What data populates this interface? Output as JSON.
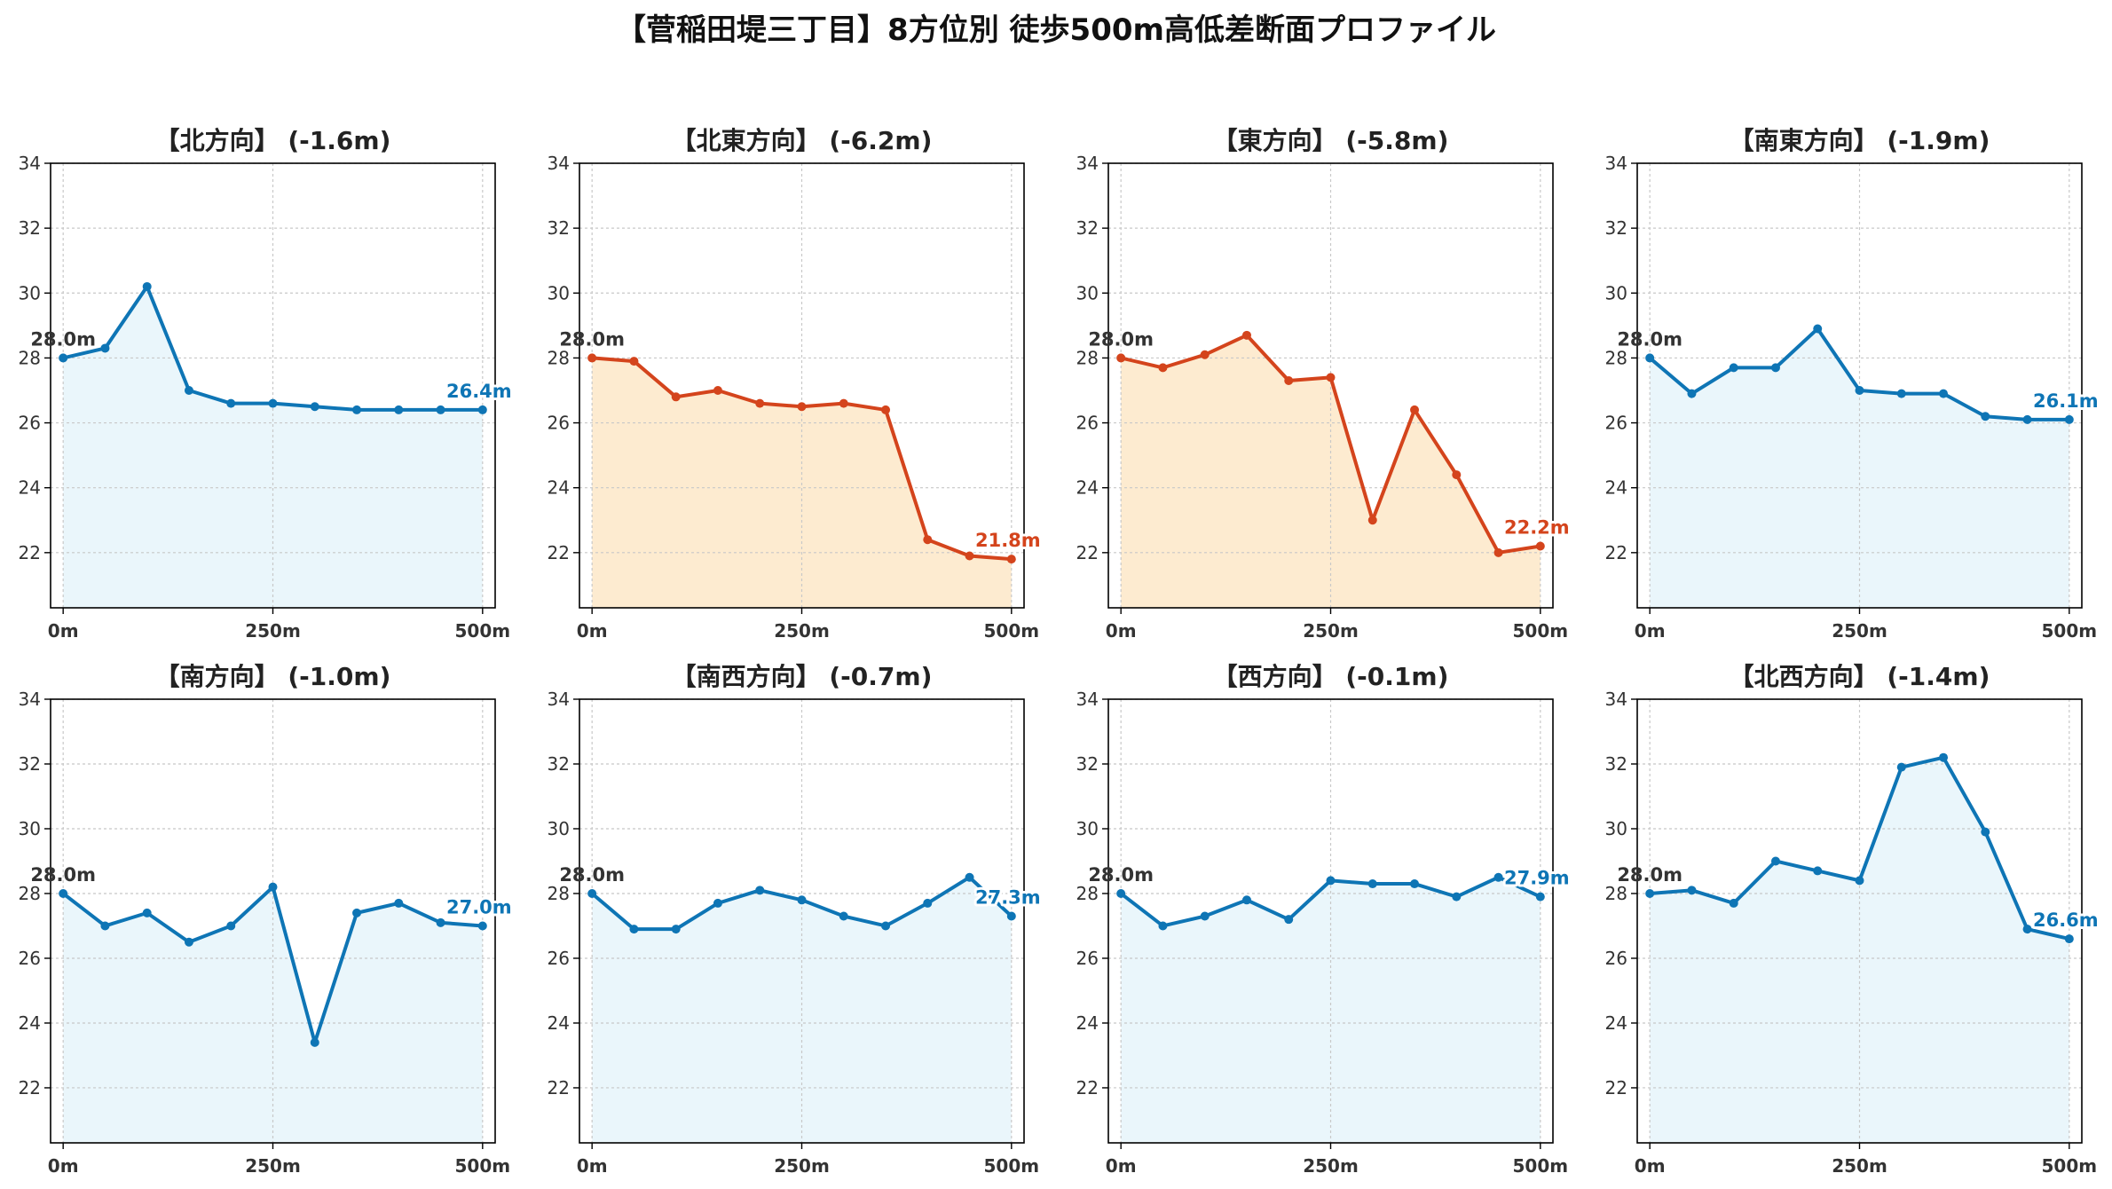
{
  "title": "【菅稲田堤三丁目】8方位別 徒歩500m高低差断面プロファイル",
  "colors": {
    "down": "#d4441c",
    "downFill": "#fdebd0",
    "normal": "#0e75b5",
    "normalFill": "#eaf6fb",
    "start": "#333333"
  },
  "chart_data": [
    {
      "type": "area",
      "title": "【北方向】 (-1.6m)",
      "kind": "normal",
      "x": [
        0,
        50,
        100,
        150,
        200,
        250,
        300,
        350,
        400,
        450,
        500
      ],
      "y": [
        28.0,
        28.3,
        30.2,
        27.0,
        26.6,
        26.6,
        26.5,
        26.4,
        26.4,
        26.4,
        26.4
      ],
      "start_label": "28.0m",
      "end_label": "26.4m",
      "xticks": [
        "0m",
        "250m",
        "500m"
      ],
      "yticks": [
        "22",
        "24",
        "26",
        "28",
        "30",
        "32",
        "34"
      ],
      "ylim": [
        20.3,
        34
      ],
      "grid": true
    },
    {
      "type": "area",
      "title": "【北東方向】 (-6.2m)",
      "kind": "down",
      "x": [
        0,
        50,
        100,
        150,
        200,
        250,
        300,
        350,
        400,
        450,
        500
      ],
      "y": [
        28.0,
        27.9,
        26.8,
        27.0,
        26.6,
        26.5,
        26.6,
        26.4,
        22.4,
        21.9,
        21.8
      ],
      "start_label": "28.0m",
      "end_label": "21.8m",
      "xticks": [
        "0m",
        "250m",
        "500m"
      ],
      "yticks": [
        "22",
        "24",
        "26",
        "28",
        "30",
        "32",
        "34"
      ],
      "ylim": [
        20.3,
        34
      ],
      "grid": true
    },
    {
      "type": "area",
      "title": "【東方向】 (-5.8m)",
      "kind": "down",
      "x": [
        0,
        50,
        100,
        150,
        200,
        250,
        300,
        350,
        400,
        450,
        500
      ],
      "y": [
        28.0,
        27.7,
        28.1,
        28.7,
        27.3,
        27.4,
        23.0,
        26.4,
        24.4,
        22.0,
        22.2
      ],
      "start_label": "28.0m",
      "end_label": "22.2m",
      "xticks": [
        "0m",
        "250m",
        "500m"
      ],
      "yticks": [
        "22",
        "24",
        "26",
        "28",
        "30",
        "32",
        "34"
      ],
      "ylim": [
        20.3,
        34
      ],
      "grid": true
    },
    {
      "type": "area",
      "title": "【南東方向】 (-1.9m)",
      "kind": "normal",
      "x": [
        0,
        50,
        100,
        150,
        200,
        250,
        300,
        350,
        400,
        450,
        500
      ],
      "y": [
        28.0,
        26.9,
        27.7,
        27.7,
        28.9,
        27.0,
        26.9,
        26.9,
        26.2,
        26.1,
        26.1
      ],
      "start_label": "28.0m",
      "end_label": "26.1m",
      "xticks": [
        "0m",
        "250m",
        "500m"
      ],
      "yticks": [
        "22",
        "24",
        "26",
        "28",
        "30",
        "32",
        "34"
      ],
      "ylim": [
        20.3,
        34
      ],
      "grid": true
    },
    {
      "type": "area",
      "title": "【南方向】 (-1.0m)",
      "kind": "normal",
      "x": [
        0,
        50,
        100,
        150,
        200,
        250,
        300,
        350,
        400,
        450,
        500
      ],
      "y": [
        28.0,
        27.0,
        27.4,
        26.5,
        27.0,
        28.2,
        23.4,
        27.4,
        27.7,
        27.1,
        27.0
      ],
      "start_label": "28.0m",
      "end_label": "27.0m",
      "xticks": [
        "0m",
        "250m",
        "500m"
      ],
      "yticks": [
        "22",
        "24",
        "26",
        "28",
        "30",
        "32",
        "34"
      ],
      "ylim": [
        20.3,
        34
      ],
      "grid": true
    },
    {
      "type": "area",
      "title": "【南西方向】 (-0.7m)",
      "kind": "normal",
      "x": [
        0,
        50,
        100,
        150,
        200,
        250,
        300,
        350,
        400,
        450,
        500
      ],
      "y": [
        28.0,
        26.9,
        26.9,
        27.7,
        28.1,
        27.8,
        27.3,
        27.0,
        27.7,
        28.5,
        27.3
      ],
      "start_label": "28.0m",
      "end_label": "27.3m",
      "xticks": [
        "0m",
        "250m",
        "500m"
      ],
      "yticks": [
        "22",
        "24",
        "26",
        "28",
        "30",
        "32",
        "34"
      ],
      "ylim": [
        20.3,
        34
      ],
      "grid": true
    },
    {
      "type": "area",
      "title": "【西方向】 (-0.1m)",
      "kind": "normal",
      "x": [
        0,
        50,
        100,
        150,
        200,
        250,
        300,
        350,
        400,
        450,
        500
      ],
      "y": [
        28.0,
        27.0,
        27.3,
        27.8,
        27.2,
        28.4,
        28.3,
        28.3,
        27.9,
        28.5,
        27.9
      ],
      "start_label": "28.0m",
      "end_label": "27.9m",
      "xticks": [
        "0m",
        "250m",
        "500m"
      ],
      "yticks": [
        "22",
        "24",
        "26",
        "28",
        "30",
        "32",
        "34"
      ],
      "ylim": [
        20.3,
        34
      ],
      "grid": true
    },
    {
      "type": "area",
      "title": "【北西方向】 (-1.4m)",
      "kind": "normal",
      "x": [
        0,
        50,
        100,
        150,
        200,
        250,
        300,
        350,
        400,
        450,
        500
      ],
      "y": [
        28.0,
        28.1,
        27.7,
        29.0,
        28.7,
        28.4,
        31.9,
        32.2,
        29.9,
        26.9,
        26.6
      ],
      "start_label": "28.0m",
      "end_label": "26.6m",
      "xticks": [
        "0m",
        "250m",
        "500m"
      ],
      "yticks": [
        "22",
        "24",
        "26",
        "28",
        "30",
        "32",
        "34"
      ],
      "ylim": [
        20.3,
        34
      ],
      "grid": true
    }
  ]
}
